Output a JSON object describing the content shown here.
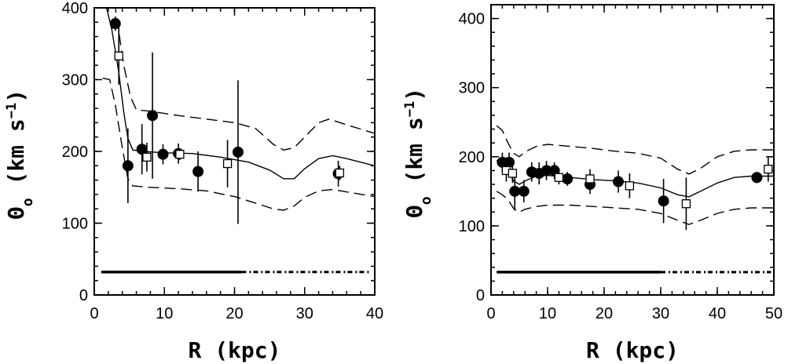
{
  "chart_data": [
    {
      "type": "scatter",
      "xlabel": "R (kpc)",
      "ylabel": "Θ",
      "ylabel_sub": "o",
      "ylabel_units": "(km s",
      "ylabel_sup": "−1",
      "ylabel_close": ")",
      "xlim": [
        0,
        40
      ],
      "ylim": [
        0,
        400
      ],
      "xticks": [
        0,
        10,
        20,
        30,
        40
      ],
      "yticks": [
        0,
        100,
        200,
        300,
        400
      ],
      "series": [
        {
          "marker": "filled-circle",
          "points": [
            {
              "x": 3.0,
              "y": 378,
              "err": 10
            },
            {
              "x": 4.8,
              "y": 180,
              "err": 52
            },
            {
              "x": 6.8,
              "y": 203,
              "err": 35
            },
            {
              "x": 8.3,
              "y": 250,
              "err": 88
            },
            {
              "x": 9.8,
              "y": 196,
              "err": 14
            },
            {
              "x": 12.0,
              "y": 197,
              "err": 14
            },
            {
              "x": 14.8,
              "y": 172,
              "err": 28
            },
            {
              "x": 20.5,
              "y": 199,
              "err": 100
            },
            {
              "x": 34.8,
              "y": 169,
              "err": 18
            }
          ]
        },
        {
          "marker": "open-square",
          "points": [
            {
              "x": 3.5,
              "y": 333,
              "err": 40
            },
            {
              "x": 7.5,
              "y": 192,
              "err": 20
            },
            {
              "x": 12.2,
              "y": 196,
              "err": 8
            },
            {
              "x": 19.0,
              "y": 183,
              "err": 33
            },
            {
              "x": 35.0,
              "y": 170,
              "err": 10
            }
          ]
        }
      ],
      "model": {
        "solid": [
          [
            1.5,
            410
          ],
          [
            2.5,
            370
          ],
          [
            3.5,
            310
          ],
          [
            4.2,
            255
          ],
          [
            4.8,
            218
          ],
          [
            5.5,
            202
          ],
          [
            7,
            200
          ],
          [
            10,
            198
          ],
          [
            14,
            197
          ],
          [
            18,
            192
          ],
          [
            22,
            185
          ],
          [
            25,
            174
          ],
          [
            27,
            162
          ],
          [
            28.5,
            162
          ],
          [
            30,
            176
          ],
          [
            32,
            190
          ],
          [
            34,
            194
          ],
          [
            36,
            190
          ],
          [
            40,
            180
          ]
        ],
        "upper": [
          [
            2,
            430
          ],
          [
            3,
            400
          ],
          [
            4.2,
            320
          ],
          [
            5.2,
            275
          ],
          [
            6,
            258
          ],
          [
            8,
            256
          ],
          [
            12,
            250
          ],
          [
            16,
            245
          ],
          [
            20,
            240
          ],
          [
            23,
            232
          ],
          [
            25.5,
            210
          ],
          [
            27,
            202
          ],
          [
            28.5,
            205
          ],
          [
            30,
            220
          ],
          [
            32,
            240
          ],
          [
            33.5,
            245
          ],
          [
            36,
            237
          ],
          [
            40,
            225
          ]
        ],
        "lower": [
          [
            1.2,
            302
          ],
          [
            2.2,
            300
          ],
          [
            3,
            265
          ],
          [
            4,
            205
          ],
          [
            4.8,
            162
          ],
          [
            5.5,
            152
          ],
          [
            8,
            150
          ],
          [
            12,
            148
          ],
          [
            16,
            145
          ],
          [
            20,
            137
          ],
          [
            23,
            128
          ],
          [
            25.5,
            120
          ],
          [
            27,
            118
          ],
          [
            28.5,
            124
          ],
          [
            30,
            136
          ],
          [
            32,
            145
          ],
          [
            34,
            147
          ],
          [
            37,
            142
          ],
          [
            40,
            137
          ]
        ]
      },
      "baseline": {
        "y": 32,
        "x_solid": [
          1,
          21
        ],
        "x_dotted": [
          21,
          39.5
        ]
      }
    },
    {
      "type": "scatter",
      "xlabel": "R (kpc)",
      "ylabel": "Θ",
      "ylabel_sub": "o",
      "ylabel_units": "(km s",
      "ylabel_sup": "−1",
      "ylabel_close": ")",
      "xlim": [
        0,
        50
      ],
      "ylim": [
        0,
        420
      ],
      "xticks": [
        0,
        10,
        20,
        30,
        40,
        50
      ],
      "yticks": [
        0,
        100,
        200,
        300,
        400
      ],
      "series": [
        {
          "marker": "filled-circle",
          "points": [
            {
              "x": 2.0,
              "y": 192,
              "err": 14
            },
            {
              "x": 3.2,
              "y": 192,
              "err": 14
            },
            {
              "x": 4.2,
              "y": 150,
              "err": 28
            },
            {
              "x": 5.8,
              "y": 150,
              "err": 16
            },
            {
              "x": 7.2,
              "y": 178,
              "err": 14
            },
            {
              "x": 8.5,
              "y": 176,
              "err": 16
            },
            {
              "x": 9.8,
              "y": 180,
              "err": 14
            },
            {
              "x": 11.2,
              "y": 180,
              "err": 12
            },
            {
              "x": 13.5,
              "y": 168,
              "err": 10
            },
            {
              "x": 17.5,
              "y": 160,
              "err": 14
            },
            {
              "x": 22.5,
              "y": 164,
              "err": 16
            },
            {
              "x": 30.5,
              "y": 136,
              "err": 32
            },
            {
              "x": 47.0,
              "y": 170,
              "err": 8
            }
          ]
        },
        {
          "marker": "open-square",
          "points": [
            {
              "x": 2.7,
              "y": 180,
              "err": 16
            },
            {
              "x": 3.8,
              "y": 176,
              "err": 14
            },
            {
              "x": 12.0,
              "y": 170,
              "err": 10
            },
            {
              "x": 17.5,
              "y": 168,
              "err": 14
            },
            {
              "x": 24.5,
              "y": 158,
              "err": 18
            },
            {
              "x": 34.5,
              "y": 132,
              "err": 38
            },
            {
              "x": 49.0,
              "y": 182,
              "err": 18
            }
          ]
        }
      ],
      "model": {
        "solid": [
          [
            1,
            195
          ],
          [
            2,
            190
          ],
          [
            3,
            180
          ],
          [
            4,
            165
          ],
          [
            5,
            160
          ],
          [
            6,
            165
          ],
          [
            8,
            172
          ],
          [
            10,
            173
          ],
          [
            14,
            170
          ],
          [
            18,
            167
          ],
          [
            22,
            165
          ],
          [
            26,
            162
          ],
          [
            30,
            155
          ],
          [
            33,
            145
          ],
          [
            35,
            142
          ],
          [
            37,
            150
          ],
          [
            40,
            162
          ],
          [
            43,
            170
          ],
          [
            46,
            172
          ],
          [
            50,
            172
          ]
        ],
        "upper": [
          [
            1,
            245
          ],
          [
            2,
            238
          ],
          [
            3,
            220
          ],
          [
            4,
            205
          ],
          [
            5,
            200
          ],
          [
            6,
            207
          ],
          [
            8,
            215
          ],
          [
            10,
            218
          ],
          [
            14,
            215
          ],
          [
            18,
            212
          ],
          [
            22,
            208
          ],
          [
            26,
            205
          ],
          [
            30,
            198
          ],
          [
            33,
            182
          ],
          [
            35,
            175
          ],
          [
            37,
            183
          ],
          [
            40,
            200
          ],
          [
            43,
            208
          ],
          [
            46,
            210
          ],
          [
            50,
            210
          ]
        ],
        "lower": [
          [
            1,
            150
          ],
          [
            2,
            145
          ],
          [
            3,
            138
          ],
          [
            4,
            125
          ],
          [
            5,
            120
          ],
          [
            6,
            124
          ],
          [
            8,
            128
          ],
          [
            10,
            130
          ],
          [
            14,
            130
          ],
          [
            18,
            128
          ],
          [
            22,
            126
          ],
          [
            26,
            124
          ],
          [
            30,
            118
          ],
          [
            33,
            108
          ],
          [
            35,
            102
          ],
          [
            37,
            108
          ],
          [
            40,
            118
          ],
          [
            43,
            124
          ],
          [
            46,
            126
          ],
          [
            50,
            126
          ]
        ]
      },
      "baseline": {
        "y": 33,
        "x_solid": [
          1,
          30
        ],
        "x_dotted": [
          30,
          49.5
        ]
      }
    }
  ]
}
